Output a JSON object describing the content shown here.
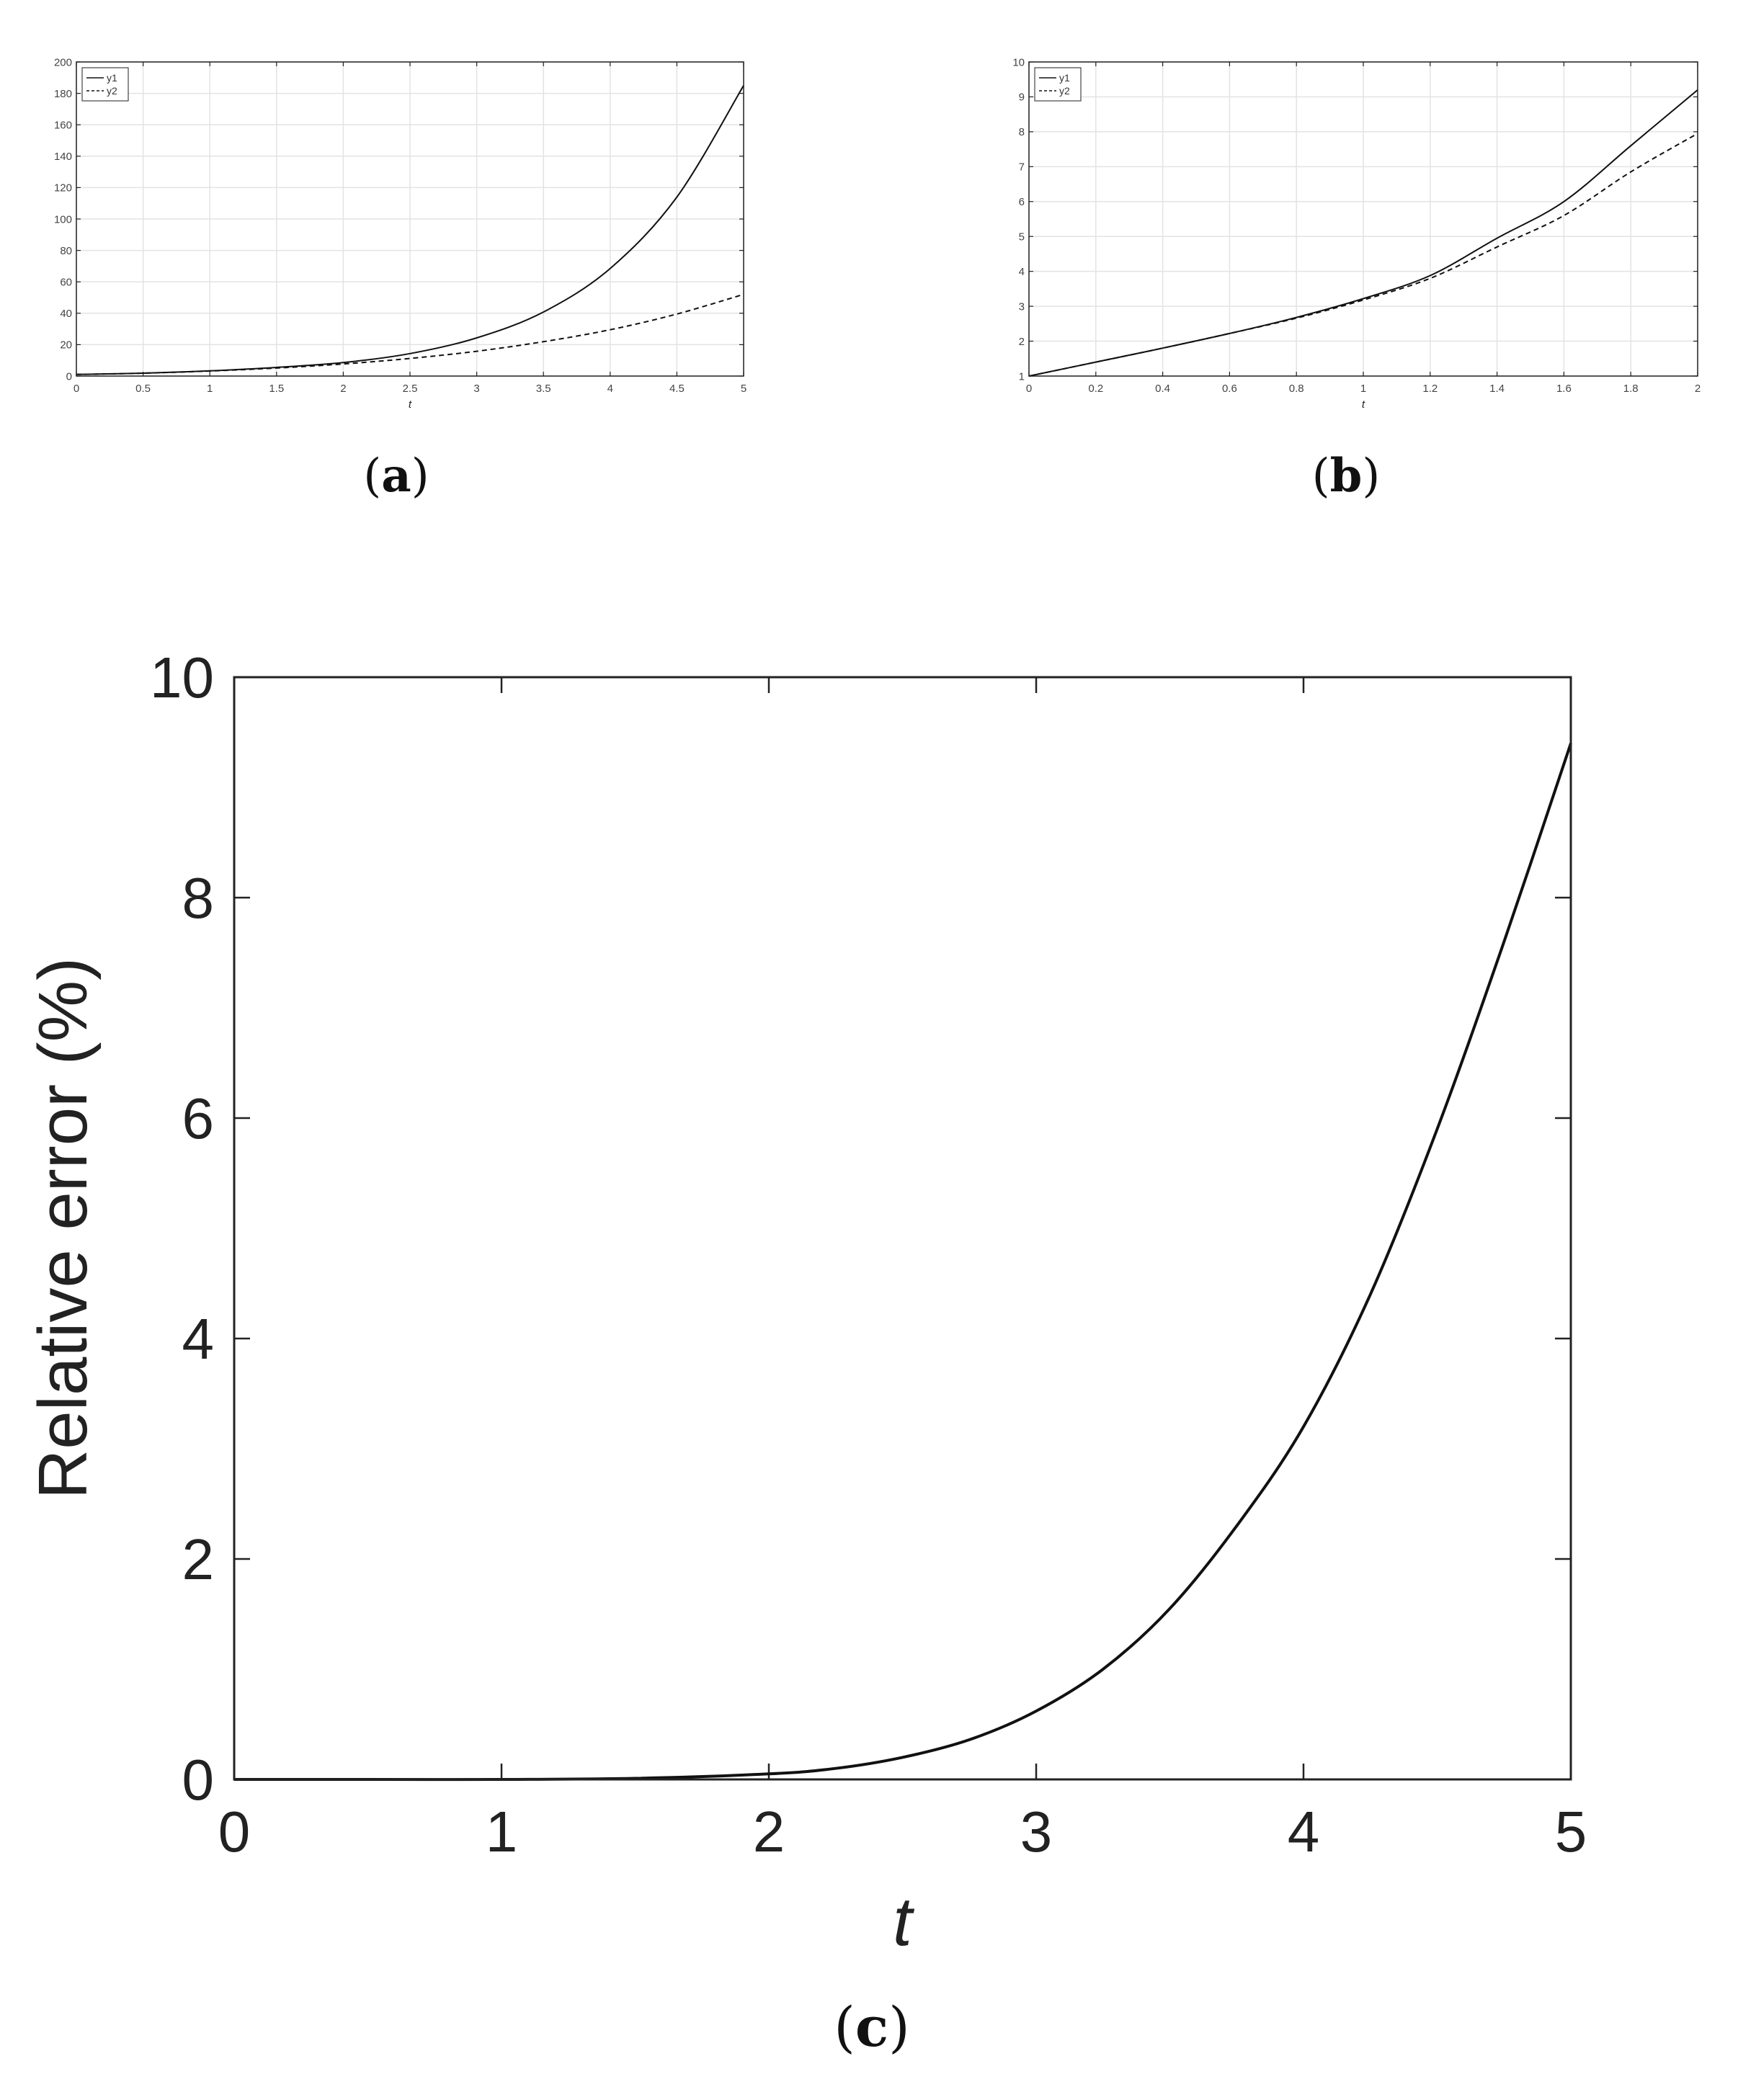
{
  "chart_data": [
    {
      "type": "line",
      "caption": "(a)",
      "xlabel": "t",
      "xlim": [
        0,
        5
      ],
      "ylim": [
        0,
        200
      ],
      "xticks": [
        0,
        0.5,
        1,
        1.5,
        2,
        2.5,
        3,
        3.5,
        4,
        4.5,
        5
      ],
      "yticks": [
        0,
        20,
        40,
        60,
        80,
        100,
        120,
        140,
        160,
        180,
        200
      ],
      "grid": true,
      "legend": "top-left",
      "x": [
        0,
        0.5,
        1,
        1.5,
        2,
        2.5,
        3,
        3.5,
        4,
        4.5,
        5
      ],
      "series": [
        {
          "name": "y1",
          "style": "solid",
          "values": [
            1.0,
            1.85,
            3.32,
            5.5,
            8.6,
            14.3,
            24.3,
            40.8,
            68.5,
            114.0,
            185.0
          ]
        },
        {
          "name": "y2",
          "style": "dashed",
          "values": [
            1.0,
            1.85,
            3.22,
            5.1,
            7.7,
            11.2,
            15.8,
            21.9,
            29.5,
            39.5,
            52.0
          ]
        }
      ]
    },
    {
      "type": "line",
      "caption": "(b)",
      "xlabel": "t",
      "xlim": [
        0,
        2
      ],
      "ylim": [
        1,
        10
      ],
      "xticks": [
        0,
        0.2,
        0.4,
        0.6,
        0.8,
        1,
        1.2,
        1.4,
        1.6,
        1.8,
        2
      ],
      "yticks": [
        1,
        2,
        3,
        4,
        5,
        6,
        7,
        8,
        9,
        10
      ],
      "grid": true,
      "legend": "top-left",
      "x": [
        0,
        0.2,
        0.4,
        0.6,
        0.8,
        1,
        1.2,
        1.4,
        1.6,
        1.8,
        2
      ],
      "series": [
        {
          "name": "y1",
          "style": "solid",
          "values": [
            1.0,
            1.4,
            1.8,
            2.22,
            2.68,
            3.22,
            3.88,
            4.95,
            6.0,
            7.6,
            9.2
          ]
        },
        {
          "name": "y2",
          "style": "dashed",
          "values": [
            1.0,
            1.4,
            1.8,
            2.22,
            2.66,
            3.18,
            3.8,
            4.7,
            5.6,
            6.85,
            7.95
          ]
        }
      ]
    },
    {
      "type": "line",
      "caption": "(c)",
      "xlabel": "t",
      "ylabel": "Relative error (%)",
      "xlim": [
        0,
        5
      ],
      "ylim": [
        0,
        10
      ],
      "xticks": [
        0,
        1,
        2,
        3,
        4,
        5
      ],
      "yticks": [
        0,
        2,
        4,
        6,
        8,
        10
      ],
      "grid": false,
      "x": [
        0,
        0.5,
        1,
        1.5,
        2,
        2.25,
        2.5,
        2.75,
        3,
        3.25,
        3.5,
        3.75,
        4,
        4.25,
        4.5,
        4.75,
        5
      ],
      "series": [
        {
          "values": [
            0,
            0,
            0,
            0.01,
            0.05,
            0.1,
            0.2,
            0.36,
            0.62,
            1.0,
            1.55,
            2.3,
            3.2,
            4.4,
            5.9,
            7.6,
            9.4
          ]
        }
      ]
    }
  ]
}
